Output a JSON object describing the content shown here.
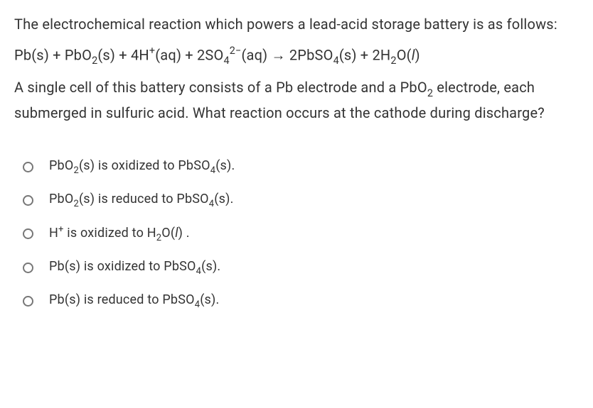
{
  "question": {
    "p1": "The electrochemical reaction which powers a lead-acid storage battery is as follows:",
    "eq": "Pb(s) + PbO₂(s) + 4H⁺(aq) + 2SO₄²⁻(aq) → 2PbSO₄(s) + 2H₂O(𝘭)",
    "p2_a": "A single cell of this battery consists of a Pb electrode and a PbO",
    "p2_b": " electrode, each submerged in sulfuric acid. What reaction occurs at the cathode during discharge?"
  },
  "options": [
    {
      "html": "PbO<span class='sub'>2</span>(s) is oxidized to PbSO<span class='sub'>4</span>(s)."
    },
    {
      "html": "PbO<span class='sub'>2</span>(s) is reduced to PbSO<span class='sub'>4</span>(s)."
    },
    {
      "html": "H<span class='sup'>+</span> is oxidized to H<span class='sub'>2</span>O(<span class='ital'>l</span>) ."
    },
    {
      "html": "Pb(s) is oxidized to PbSO<span class='sub'>4</span>(s)."
    },
    {
      "html": "Pb(s) is reduced to PbSO<span class='sub'>4</span>(s)."
    }
  ],
  "style": {
    "text_color": "#333333",
    "background": "#ffffff",
    "radio_border": "#777777",
    "question_fontsize": 20,
    "option_fontsize": 18
  }
}
